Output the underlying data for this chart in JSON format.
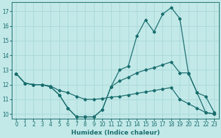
{
  "xlabel": "Humidex (Indice chaleur)",
  "bg_color": "#c2e8e8",
  "line_color": "#1a6e6e",
  "grid_color": "#a8d8d8",
  "xlim": [
    -0.5,
    23.5
  ],
  "ylim": [
    9.7,
    17.6
  ],
  "yticks": [
    10,
    11,
    12,
    13,
    14,
    15,
    16,
    17
  ],
  "xticks": [
    0,
    1,
    2,
    3,
    4,
    5,
    6,
    7,
    8,
    9,
    10,
    11,
    12,
    13,
    14,
    15,
    16,
    17,
    18,
    19,
    20,
    21,
    22,
    23
  ],
  "line1_x": [
    0,
    1,
    2,
    3,
    4,
    5,
    6,
    7,
    8,
    9,
    10,
    11,
    12,
    13,
    14,
    15,
    16,
    17,
    18,
    19,
    20,
    21,
    22,
    23
  ],
  "line1_y": [
    12.75,
    12.1,
    12.0,
    12.0,
    11.85,
    11.3,
    10.4,
    9.8,
    9.8,
    9.8,
    10.3,
    11.85,
    13.0,
    13.25,
    15.3,
    16.4,
    15.6,
    16.8,
    17.25,
    16.5,
    12.75,
    11.45,
    10.1,
    10.0
  ],
  "line2_x": [
    0,
    1,
    2,
    3,
    4,
    5,
    6,
    7,
    8,
    9,
    10,
    11,
    12,
    13,
    14,
    15,
    16,
    17,
    18,
    19,
    20,
    21,
    22,
    23
  ],
  "line2_y": [
    12.75,
    12.1,
    12.0,
    12.0,
    11.85,
    11.3,
    10.4,
    9.8,
    9.8,
    9.8,
    10.3,
    11.85,
    12.25,
    12.5,
    12.8,
    13.0,
    13.15,
    13.35,
    13.55,
    12.8,
    12.8,
    11.45,
    11.2,
    10.1
  ],
  "line3_x": [
    0,
    1,
    2,
    3,
    4,
    5,
    6,
    7,
    8,
    9,
    10,
    11,
    12,
    13,
    14,
    15,
    16,
    17,
    18,
    19,
    20,
    21,
    22,
    23
  ],
  "line3_y": [
    12.75,
    12.1,
    12.0,
    12.0,
    11.9,
    11.6,
    11.45,
    11.2,
    11.0,
    11.0,
    11.05,
    11.15,
    11.2,
    11.3,
    11.4,
    11.5,
    11.6,
    11.7,
    11.8,
    11.0,
    10.7,
    10.4,
    10.1,
    10.0
  ]
}
